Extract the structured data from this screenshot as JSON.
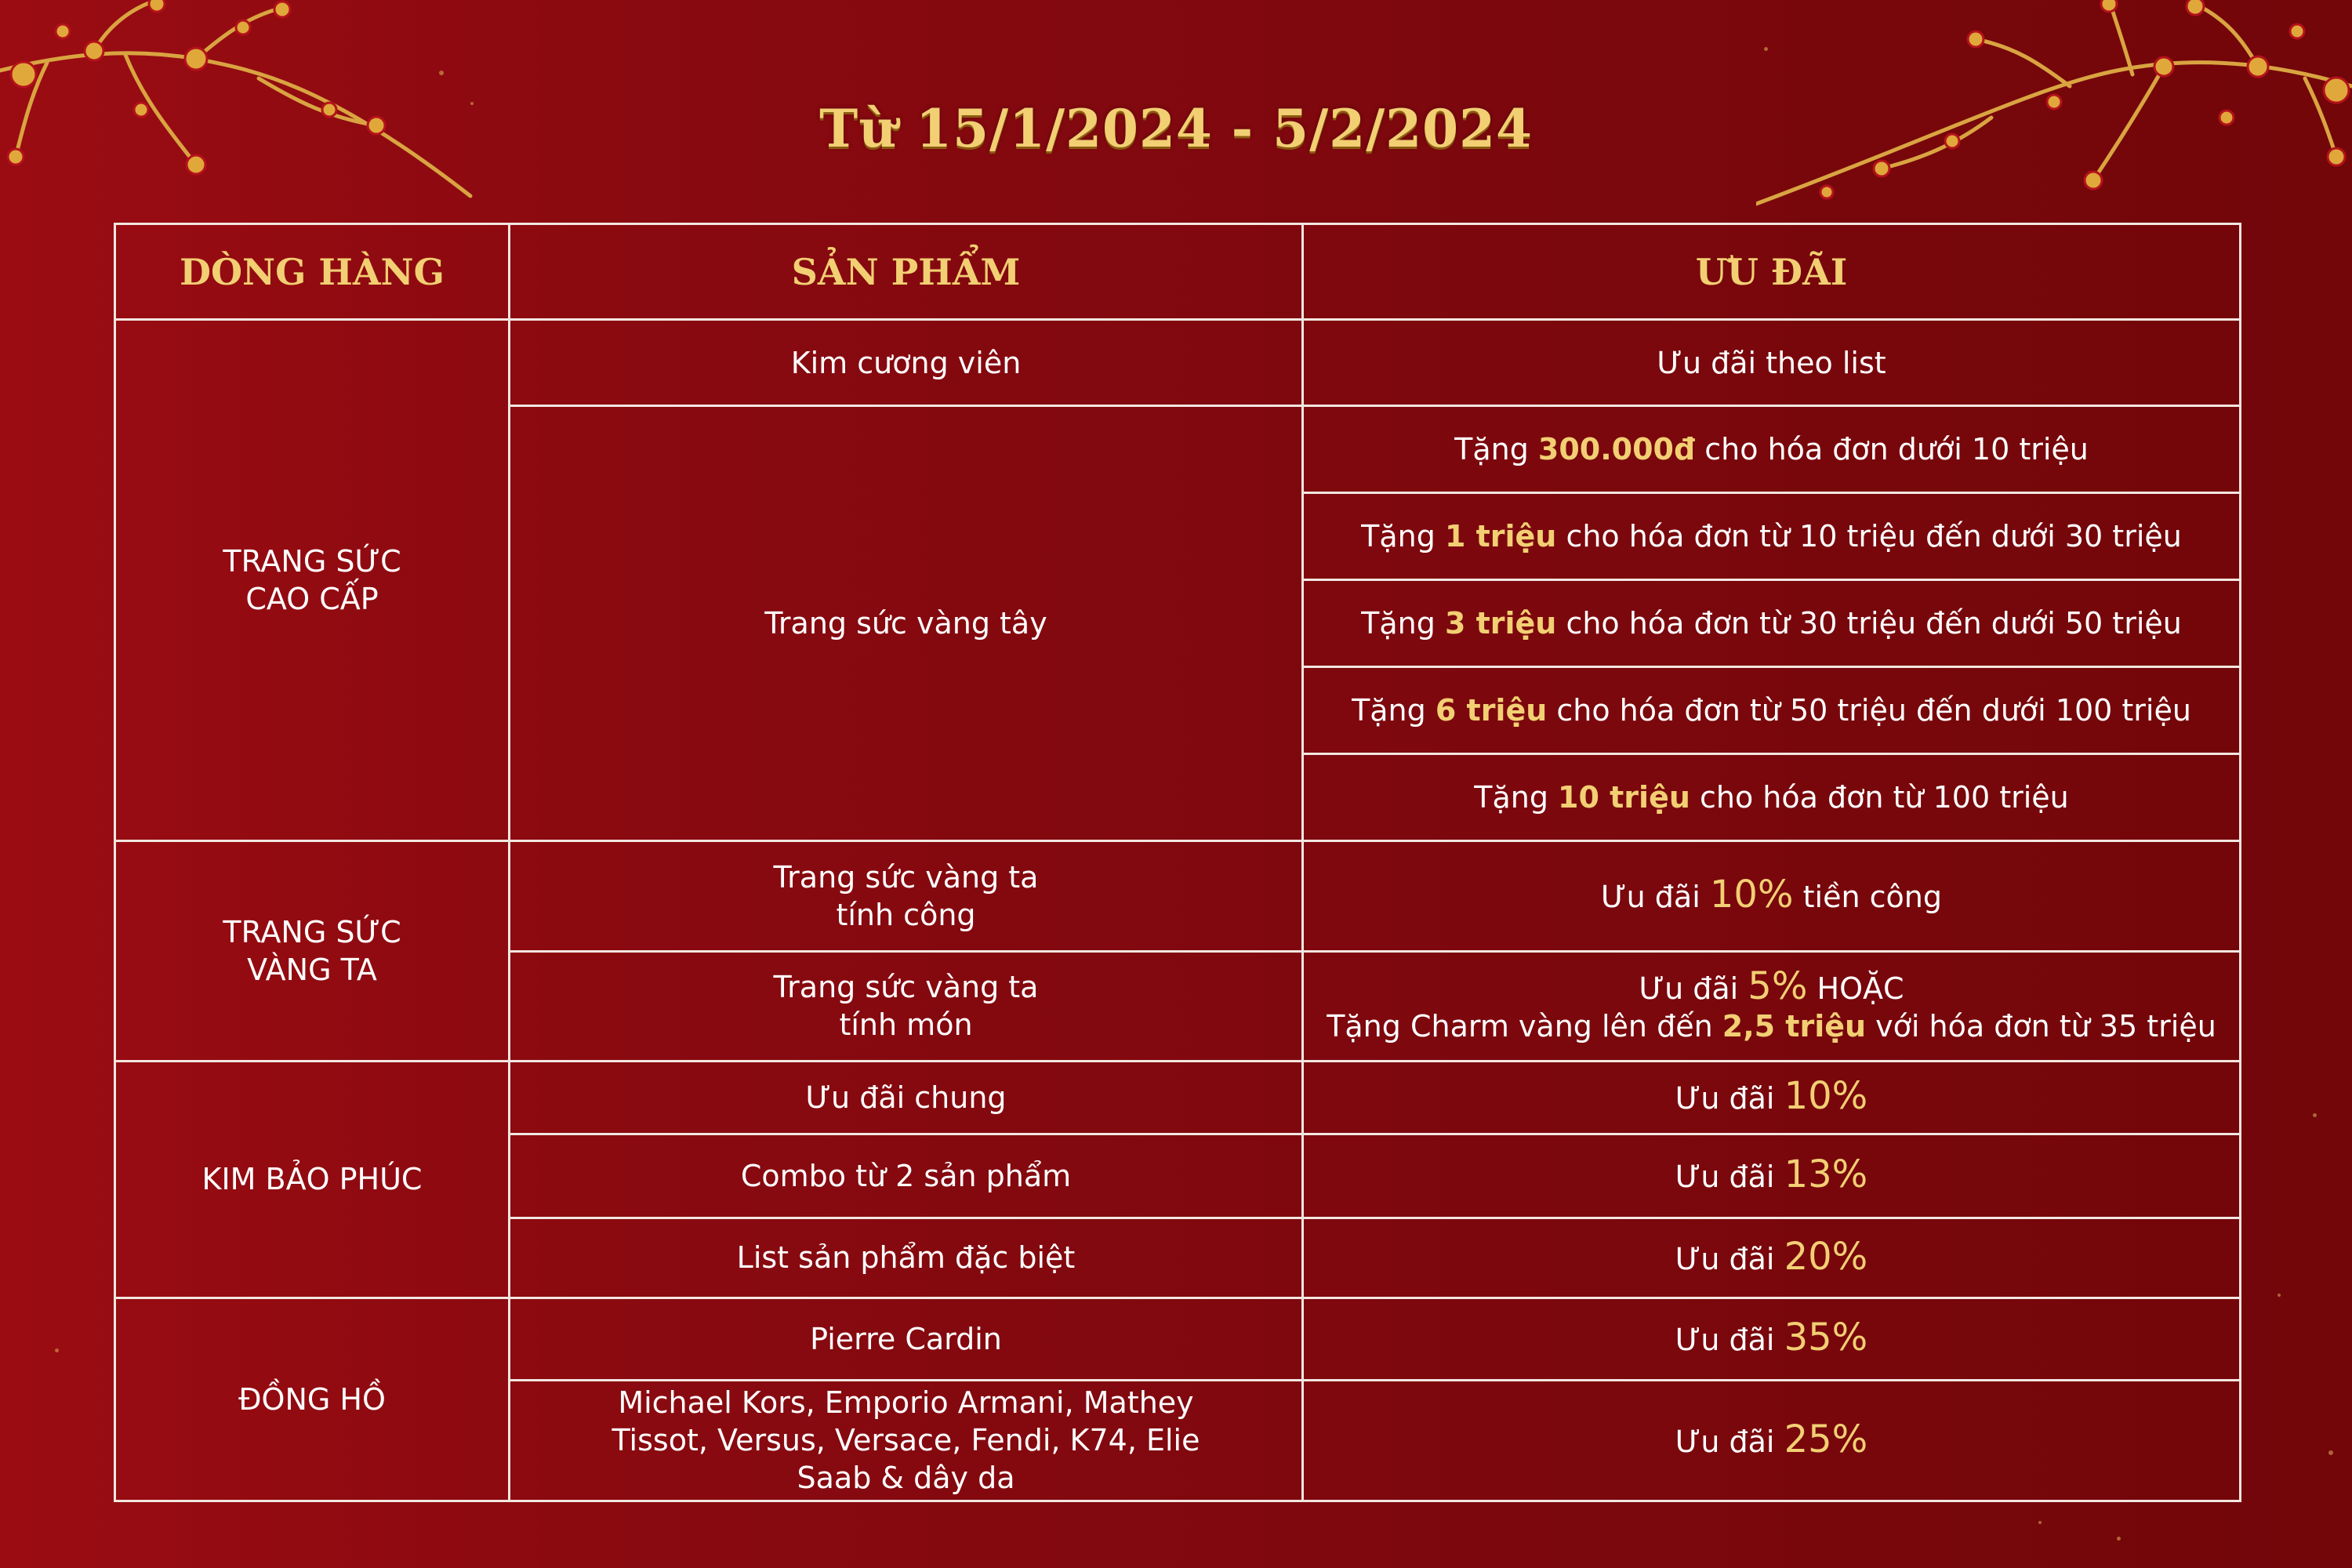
{
  "title": "Từ 15/1/2024 - 5/2/2024",
  "colors": {
    "background": "#8a0a10",
    "gold": "#f2cf73",
    "border": "#f2e6e0",
    "text": "#ffffff"
  },
  "decor": {
    "left_branch": "plum-blossom-branch-icon",
    "right_branch": "plum-blossom-branch-icon"
  },
  "table": {
    "headers": [
      "DÒNG HÀNG",
      "SẢN PHẨM",
      "ƯU ĐÃI"
    ],
    "groups": [
      {
        "category": "TRANG SỨC CAO CẤP",
        "products": [
          {
            "name": "Kim cương viên",
            "offers": [
              {
                "text": "Ưu đãi theo list"
              }
            ]
          },
          {
            "name": "Trang sức vàng tây",
            "offers": [
              {
                "pre": "Tặng ",
                "highlight": "300.000đ",
                "post": " cho hóa đơn dưới 10 triệu"
              },
              {
                "pre": "Tặng ",
                "highlight": "1 triệu",
                "post": " cho hóa đơn từ 10 triệu đến dưới 30 triệu"
              },
              {
                "pre": "Tặng ",
                "highlight": "3 triệu",
                "post": " cho hóa đơn từ 30 triệu đến dưới 50 triệu"
              },
              {
                "pre": "Tặng ",
                "highlight": "6 triệu",
                "post": " cho hóa đơn từ 50 triệu đến dưới 100 triệu"
              },
              {
                "pre": "Tặng ",
                "highlight": "10 triệu",
                "post": " cho hóa đơn từ 100 triệu"
              }
            ]
          }
        ]
      },
      {
        "category": "TRANG SỨC VÀNG TA",
        "products": [
          {
            "name": "Trang sức vàng ta tính công",
            "offers": [
              {
                "pre": "Ưu đãi ",
                "percent": "10%",
                "post": " tiền công"
              }
            ]
          },
          {
            "name": "Trang sức vàng ta tính món",
            "offers": [
              {
                "pre": "Ưu đãi ",
                "percent": "5%",
                "post": " HOẶC",
                "line2_pre": "Tặng Charm vàng lên đến ",
                "line2_highlight": "2,5 triệu",
                "line2_post": " với hóa đơn từ 35 triệu"
              }
            ]
          }
        ]
      },
      {
        "category": "KIM BẢO PHÚC",
        "products": [
          {
            "name": "Ưu đãi chung",
            "offers": [
              {
                "pre": "Ưu đãi ",
                "percent": "10%"
              }
            ]
          },
          {
            "name": "Combo từ 2 sản phẩm",
            "offers": [
              {
                "pre": "Ưu đãi ",
                "percent": "13%"
              }
            ]
          },
          {
            "name": "List sản phẩm đặc biệt",
            "offers": [
              {
                "pre": "Ưu đãi ",
                "percent": "20%"
              }
            ]
          }
        ]
      },
      {
        "category": "ĐỒNG HỒ",
        "products": [
          {
            "name": "Pierre Cardin",
            "offers": [
              {
                "pre": "Ưu đãi ",
                "percent": "35%"
              }
            ]
          },
          {
            "name": "Michael Kors, Emporio Armani, Mathey Tissot, Versus, Versace, Fendi, K74, Elie Saab & dây da",
            "offers": [
              {
                "pre": "Ưu đãi ",
                "percent": "25%"
              }
            ]
          }
        ]
      }
    ]
  }
}
